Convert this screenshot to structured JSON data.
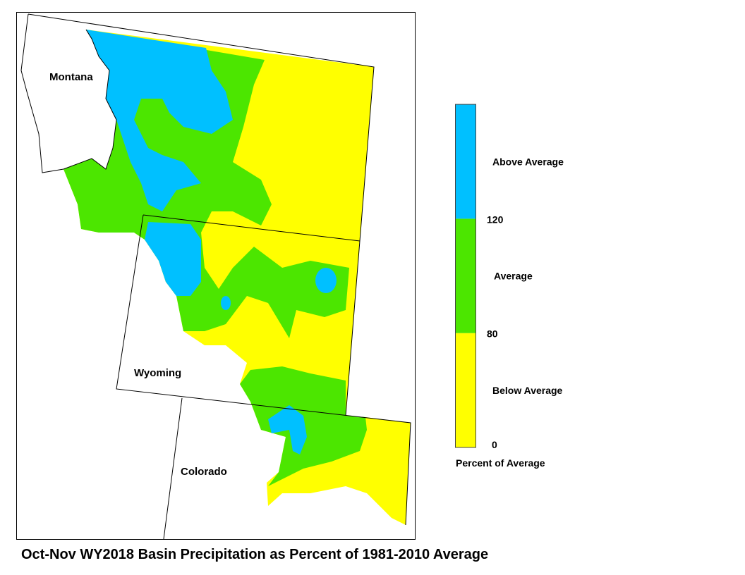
{
  "map": {
    "labels": [
      "Montana",
      "Wyoming",
      "Colorado"
    ]
  },
  "legend": {
    "classes": [
      {
        "label": "Below Average",
        "color": "#ffff00"
      },
      {
        "label": "Average",
        "color": "#4ce600"
      },
      {
        "label": "Above Average",
        "color": "#00c0ff"
      }
    ],
    "ticks": [
      0,
      80,
      120
    ],
    "caption": "Percent of Average"
  },
  "title": "Oct-Nov WY2018 Basin Precipitation as Percent of 1981-2010 Average"
}
